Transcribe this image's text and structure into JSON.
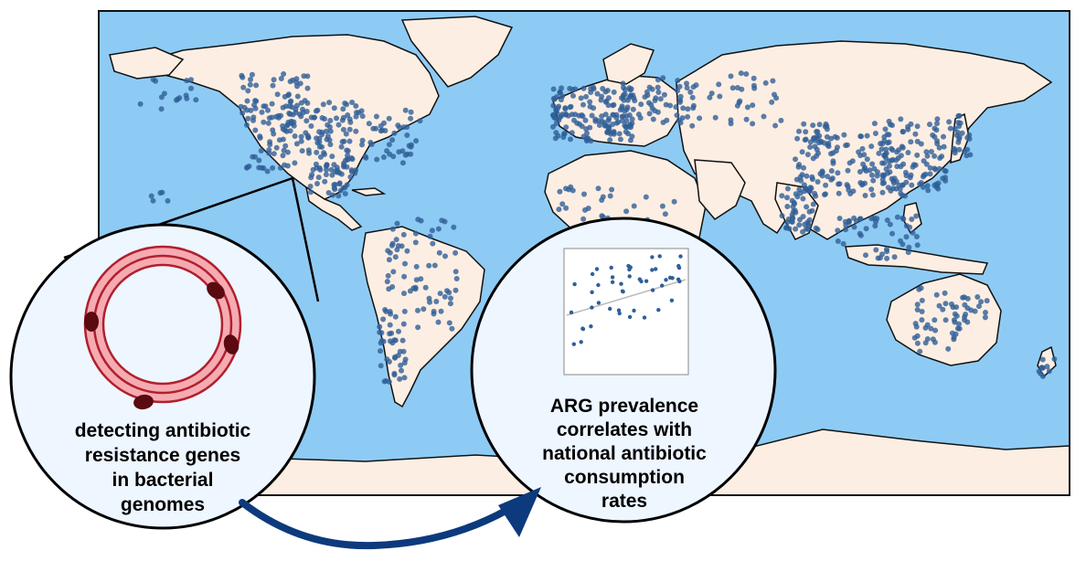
{
  "colors": {
    "ocean": "#8ecbf4",
    "land": "#fdeee3",
    "border": "#111111",
    "sample_point": "#2f5f97",
    "circle_fill": "#eef6ff",
    "plasmid_fill": "#f6aab2",
    "plasmid_stroke": "#b0202c",
    "resistance_gene": "#5a0a10",
    "arrow": "#0d3a7d"
  },
  "left_callout": {
    "icon": "plasmid-ring-icon",
    "lines": [
      "detecting antibiotic",
      "resistance genes",
      "in bacterial",
      "genomes"
    ]
  },
  "right_callout": {
    "icon": "scatter-plot-icon",
    "lines": [
      "ARG prevalence",
      "correlates with",
      "national antibiotic",
      "consumption",
      "rates"
    ]
  },
  "flow_arrow": {
    "icon": "curved-arrow-icon"
  }
}
